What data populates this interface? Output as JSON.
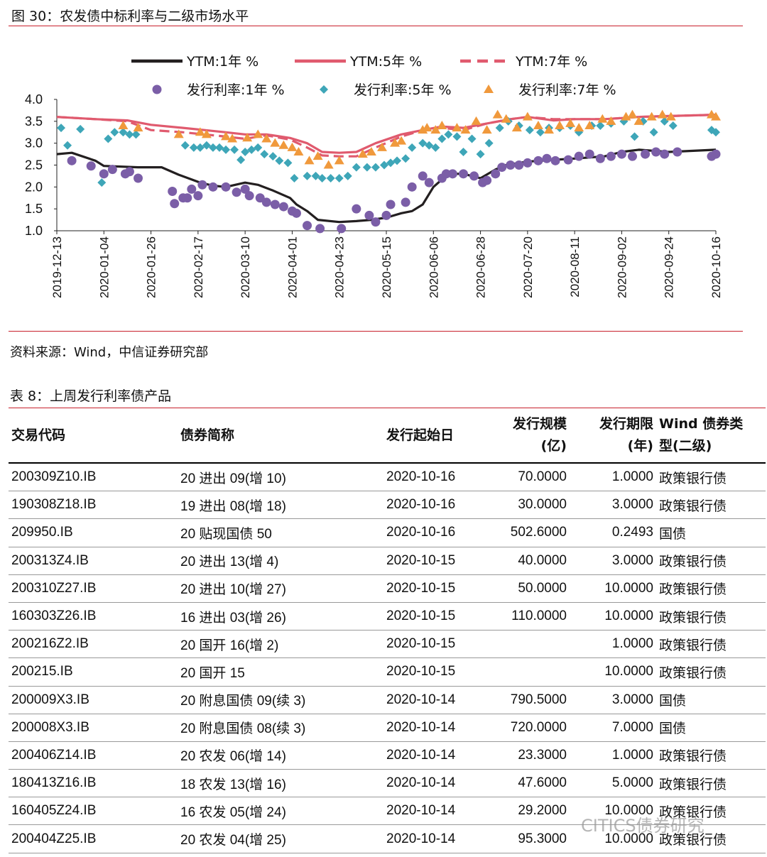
{
  "figure": {
    "title": "图 30：农发债中标利率与二级市场水平",
    "source": "资料来源：Wind，中信证券研究部"
  },
  "chart_data": {
    "type": "line",
    "ylim": [
      1.0,
      4.0
    ],
    "yticks": [
      "1.0",
      "1.5",
      "2.0",
      "2.5",
      "3.0",
      "3.5",
      "4.0"
    ],
    "x_range": [
      "2019-12-13",
      "2020-10-16"
    ],
    "x_ticks": [
      "2019-12-13",
      "2020-01-04",
      "2020-01-26",
      "2020-02-17",
      "2020-03-10",
      "2020-04-01",
      "2020-04-23",
      "2020-05-15",
      "2020-06-06",
      "2020-06-28",
      "2020-07-20",
      "2020-08-11",
      "2020-09-02",
      "2020-09-24",
      "2020-10-16"
    ],
    "grid": false,
    "legend_position": "top",
    "series": [
      {
        "name": "YTM:1年 %",
        "kind": "line",
        "color": "#231f20",
        "dash": "solid",
        "x": [
          "2019-12-13",
          "2019-12-20",
          "2019-12-31",
          "2020-01-04",
          "2020-01-20",
          "2020-01-31",
          "2020-02-08",
          "2020-02-18",
          "2020-02-24",
          "2020-03-01",
          "2020-03-10",
          "2020-03-16",
          "2020-03-23",
          "2020-03-31",
          "2020-04-03",
          "2020-04-08",
          "2020-04-13",
          "2020-04-23",
          "2020-05-01",
          "2020-05-08",
          "2020-05-15",
          "2020-05-22",
          "2020-05-27",
          "2020-06-01",
          "2020-06-06",
          "2020-06-13",
          "2020-06-20",
          "2020-06-28",
          "2020-07-05",
          "2020-07-10",
          "2020-07-20",
          "2020-08-01",
          "2020-08-11",
          "2020-08-25",
          "2020-09-02",
          "2020-09-10",
          "2020-09-24",
          "2020-10-16"
        ],
        "values": [
          2.75,
          2.78,
          2.6,
          2.48,
          2.45,
          2.45,
          2.28,
          2.1,
          2.03,
          2.0,
          2.1,
          2.05,
          1.92,
          1.75,
          1.6,
          1.45,
          1.25,
          1.2,
          1.22,
          1.25,
          1.3,
          1.4,
          1.45,
          1.6,
          2.0,
          2.3,
          2.3,
          2.2,
          2.4,
          2.5,
          2.58,
          2.62,
          2.65,
          2.7,
          2.8,
          2.85,
          2.8,
          2.85
        ]
      },
      {
        "name": "YTM:5年 %",
        "kind": "line",
        "color": "#e05a6e",
        "dash": "solid",
        "x": [
          "2019-12-13",
          "2019-12-31",
          "2020-01-15",
          "2020-01-26",
          "2020-02-10",
          "2020-02-20",
          "2020-03-01",
          "2020-03-10",
          "2020-03-20",
          "2020-03-31",
          "2020-04-08",
          "2020-04-15",
          "2020-04-23",
          "2020-05-01",
          "2020-05-10",
          "2020-05-22",
          "2020-06-01",
          "2020-06-10",
          "2020-06-20",
          "2020-07-01",
          "2020-07-12",
          "2020-07-20",
          "2020-08-01",
          "2020-08-11",
          "2020-08-25",
          "2020-09-10",
          "2020-09-24",
          "2020-10-16"
        ],
        "values": [
          3.6,
          3.55,
          3.52,
          3.42,
          3.35,
          3.3,
          3.25,
          3.2,
          3.2,
          3.12,
          3.0,
          2.8,
          2.78,
          2.8,
          3.0,
          3.2,
          3.3,
          3.38,
          3.35,
          3.45,
          3.55,
          3.6,
          3.52,
          3.55,
          3.55,
          3.6,
          3.62,
          3.65
        ]
      },
      {
        "name": "YTM:7年 %",
        "kind": "line",
        "color": "#e05a6e",
        "dash": "dashed",
        "x": [
          "2019-12-13",
          "2019-12-31",
          "2020-01-15",
          "2020-01-26",
          "2020-02-10",
          "2020-02-20",
          "2020-03-01",
          "2020-03-10",
          "2020-03-20",
          "2020-03-31",
          "2020-04-08",
          "2020-04-15",
          "2020-04-23",
          "2020-05-01",
          "2020-05-10",
          "2020-05-22",
          "2020-06-01",
          "2020-06-10",
          "2020-06-20",
          "2020-07-01",
          "2020-07-12",
          "2020-07-20",
          "2020-08-01",
          "2020-08-11",
          "2020-08-25",
          "2020-09-10",
          "2020-09-24",
          "2020-10-16"
        ],
        "values": [
          3.6,
          3.55,
          3.5,
          3.3,
          3.25,
          3.2,
          3.15,
          3.1,
          3.18,
          3.08,
          2.9,
          2.72,
          2.7,
          2.7,
          2.9,
          3.15,
          3.3,
          3.35,
          3.3,
          3.45,
          3.55,
          3.6,
          3.55,
          3.55,
          3.55,
          3.6,
          3.62,
          3.65
        ]
      },
      {
        "name": "发行利率:1年 %",
        "kind": "scatter",
        "marker": "circle",
        "color": "#7b5ea7",
        "x": [
          "2019-12-20",
          "2019-12-29",
          "2020-01-04",
          "2020-01-08",
          "2020-01-14",
          "2020-01-16",
          "2020-01-20",
          "2020-02-05",
          "2020-02-06",
          "2020-02-10",
          "2020-02-12",
          "2020-02-14",
          "2020-02-17",
          "2020-02-19",
          "2020-02-24",
          "2020-03-01",
          "2020-03-06",
          "2020-03-10",
          "2020-03-12",
          "2020-03-17",
          "2020-03-20",
          "2020-03-24",
          "2020-03-28",
          "2020-04-01",
          "2020-04-03",
          "2020-04-08",
          "2020-04-14",
          "2020-04-24",
          "2020-05-01",
          "2020-05-07",
          "2020-05-10",
          "2020-05-15",
          "2020-05-17",
          "2020-05-24",
          "2020-05-27",
          "2020-06-01",
          "2020-06-04",
          "2020-06-10",
          "2020-06-12",
          "2020-06-15",
          "2020-06-20",
          "2020-06-25",
          "2020-06-29",
          "2020-07-01",
          "2020-07-05",
          "2020-07-08",
          "2020-07-12",
          "2020-07-16",
          "2020-07-20",
          "2020-07-25",
          "2020-07-29",
          "2020-08-02",
          "2020-08-08",
          "2020-08-13",
          "2020-08-18",
          "2020-08-23",
          "2020-08-28",
          "2020-09-02",
          "2020-09-07",
          "2020-09-13",
          "2020-09-18",
          "2020-09-22",
          "2020-09-28",
          "2020-10-14",
          "2020-10-16"
        ],
        "values": [
          2.6,
          2.48,
          2.3,
          2.4,
          2.3,
          2.35,
          2.2,
          1.9,
          1.62,
          1.75,
          1.75,
          1.95,
          1.8,
          2.05,
          2.0,
          2.0,
          1.88,
          1.95,
          1.8,
          1.75,
          1.65,
          1.6,
          1.55,
          1.45,
          1.4,
          1.12,
          1.05,
          1.05,
          1.5,
          1.35,
          1.2,
          1.35,
          1.6,
          1.65,
          2.0,
          2.25,
          2.1,
          2.2,
          2.3,
          2.3,
          2.3,
          2.25,
          2.1,
          2.15,
          2.3,
          2.45,
          2.5,
          2.5,
          2.55,
          2.6,
          2.65,
          2.6,
          2.62,
          2.7,
          2.75,
          2.65,
          2.7,
          2.75,
          2.7,
          2.75,
          2.8,
          2.75,
          2.8,
          2.7,
          2.75
        ]
      },
      {
        "name": "发行利率:5年 %",
        "kind": "scatter",
        "marker": "diamond",
        "color": "#3ea6b8",
        "x": [
          "2019-12-15",
          "2019-12-18",
          "2019-12-24",
          "2020-01-03",
          "2020-01-06",
          "2020-01-09",
          "2020-01-13",
          "2020-01-16",
          "2020-01-19",
          "2020-02-11",
          "2020-02-15",
          "2020-02-18",
          "2020-02-21",
          "2020-02-24",
          "2020-02-27",
          "2020-03-01",
          "2020-03-05",
          "2020-03-08",
          "2020-03-10",
          "2020-03-13",
          "2020-03-16",
          "2020-03-19",
          "2020-03-23",
          "2020-03-26",
          "2020-03-30",
          "2020-04-02",
          "2020-04-08",
          "2020-04-12",
          "2020-04-15",
          "2020-04-19",
          "2020-04-23",
          "2020-04-27",
          "2020-05-01",
          "2020-05-06",
          "2020-05-10",
          "2020-05-14",
          "2020-05-17",
          "2020-05-20",
          "2020-05-24",
          "2020-05-27",
          "2020-06-01",
          "2020-06-04",
          "2020-06-07",
          "2020-06-10",
          "2020-06-13",
          "2020-06-17",
          "2020-06-20",
          "2020-06-24",
          "2020-06-28",
          "2020-07-02",
          "2020-07-07",
          "2020-07-11",
          "2020-07-16",
          "2020-07-21",
          "2020-07-26",
          "2020-07-30",
          "2020-08-04",
          "2020-08-09",
          "2020-08-13",
          "2020-08-19",
          "2020-08-23",
          "2020-08-28",
          "2020-09-03",
          "2020-09-08",
          "2020-09-12",
          "2020-09-17",
          "2020-09-22",
          "2020-09-26",
          "2020-10-14",
          "2020-10-16"
        ],
        "values": [
          3.35,
          2.95,
          3.32,
          2.1,
          3.1,
          3.25,
          3.25,
          3.2,
          3.2,
          2.95,
          2.9,
          2.9,
          2.95,
          2.9,
          2.9,
          2.85,
          2.85,
          2.62,
          2.8,
          2.85,
          2.9,
          2.75,
          2.7,
          2.6,
          2.55,
          2.2,
          2.25,
          2.25,
          2.2,
          2.2,
          2.2,
          2.25,
          2.45,
          2.45,
          2.45,
          2.5,
          2.55,
          2.6,
          2.65,
          2.9,
          3.0,
          2.95,
          2.9,
          3.1,
          3.2,
          3.15,
          2.8,
          3.1,
          2.75,
          3.0,
          3.35,
          3.5,
          3.4,
          3.3,
          3.25,
          3.35,
          3.35,
          3.4,
          3.25,
          3.4,
          3.4,
          3.45,
          3.5,
          3.15,
          3.5,
          3.25,
          3.5,
          3.4,
          3.3,
          3.25
        ]
      },
      {
        "name": "发行利率:7年 %",
        "kind": "scatter",
        "marker": "triangle",
        "color": "#f0993c",
        "x": [
          "2020-01-13",
          "2020-01-20",
          "2020-02-08",
          "2020-02-18",
          "2020-02-21",
          "2020-03-01",
          "2020-03-04",
          "2020-03-11",
          "2020-03-16",
          "2020-03-20",
          "2020-03-24",
          "2020-03-28",
          "2020-04-01",
          "2020-04-04",
          "2020-04-09",
          "2020-04-13",
          "2020-04-18",
          "2020-04-23",
          "2020-05-04",
          "2020-05-08",
          "2020-05-13",
          "2020-05-19",
          "2020-05-22",
          "2020-06-01",
          "2020-06-03",
          "2020-06-07",
          "2020-06-10",
          "2020-06-17",
          "2020-06-21",
          "2020-06-26",
          "2020-07-01",
          "2020-07-06",
          "2020-07-10",
          "2020-07-15",
          "2020-07-20",
          "2020-07-25",
          "2020-07-30",
          "2020-08-04",
          "2020-08-09",
          "2020-08-13",
          "2020-08-18",
          "2020-08-24",
          "2020-08-28",
          "2020-09-04",
          "2020-09-07",
          "2020-09-10",
          "2020-09-16",
          "2020-09-21",
          "2020-09-25",
          "2020-10-14",
          "2020-10-16"
        ],
        "values": [
          3.4,
          3.35,
          3.2,
          3.25,
          3.2,
          3.15,
          3.1,
          3.12,
          3.2,
          3.1,
          3.0,
          2.95,
          2.9,
          2.8,
          2.6,
          2.7,
          2.5,
          2.6,
          2.75,
          2.8,
          2.9,
          3.0,
          3.05,
          3.3,
          3.35,
          3.3,
          3.4,
          3.35,
          3.3,
          3.5,
          3.3,
          3.65,
          3.55,
          3.35,
          3.6,
          3.4,
          3.3,
          3.4,
          3.45,
          3.35,
          3.4,
          3.55,
          3.5,
          3.6,
          3.65,
          3.5,
          3.6,
          3.65,
          3.6,
          3.65,
          3.6
        ]
      }
    ]
  },
  "table": {
    "title": "表 8：上周发行利率债产品",
    "headers": [
      {
        "l1": "交易代码",
        "l2": ""
      },
      {
        "l1": "债券简称",
        "l2": ""
      },
      {
        "l1": "发行起始日",
        "l2": ""
      },
      {
        "l1": "发行规模",
        "l2": "(亿)"
      },
      {
        "l1": "发行期限",
        "l2": "(年)"
      },
      {
        "l1": "Wind 债券类",
        "l2": "型(二级)"
      }
    ],
    "rows": [
      [
        "200309Z10.IB",
        "20 进出 09(增 10)",
        "2020-10-16",
        "70.0000",
        "1.0000",
        "政策银行债"
      ],
      [
        "190308Z18.IB",
        "19 进出 08(增 18)",
        "2020-10-16",
        "30.0000",
        "3.0000",
        "政策银行债"
      ],
      [
        "209950.IB",
        "20 贴现国债 50",
        "2020-10-16",
        "502.6000",
        "0.2493",
        "国债"
      ],
      [
        "200313Z4.IB",
        "20 进出 13(增 4)",
        "2020-10-15",
        "40.0000",
        "3.0000",
        "政策银行债"
      ],
      [
        "200310Z27.IB",
        "20 进出 10(增 27)",
        "2020-10-15",
        "50.0000",
        "10.0000",
        "政策银行债"
      ],
      [
        "160303Z26.IB",
        "16 进出 03(增 26)",
        "2020-10-15",
        "110.0000",
        "10.0000",
        "政策银行债"
      ],
      [
        "200216Z2.IB",
        "20 国开 16(增 2)",
        "2020-10-15",
        "",
        "1.0000",
        "政策银行债"
      ],
      [
        "200215.IB",
        "20 国开 15",
        "2020-10-15",
        "",
        "10.0000",
        "政策银行债"
      ],
      [
        "200009X3.IB",
        "20 附息国债 09(续 3)",
        "2020-10-14",
        "790.5000",
        "3.0000",
        "国债"
      ],
      [
        "200008X3.IB",
        "20 附息国债 08(续 3)",
        "2020-10-14",
        "720.0000",
        "7.0000",
        "国债"
      ],
      [
        "200406Z14.IB",
        "20 农发 06(增 14)",
        "2020-10-14",
        "23.3000",
        "1.0000",
        "政策银行债"
      ],
      [
        "180413Z16.IB",
        "18 农发 13(增 16)",
        "2020-10-14",
        "47.6000",
        "5.0000",
        "政策银行债"
      ],
      [
        "160405Z24.IB",
        "16 农发 05(增 24)",
        "2020-10-14",
        "29.2000",
        "10.0000",
        "政策银行债"
      ],
      [
        "200404Z25.IB",
        "20 农发 04(增 25)",
        "2020-10-14",
        "95.3000",
        "10.0000",
        "政策银行债"
      ]
    ]
  },
  "watermark": "CITICS债券研究"
}
